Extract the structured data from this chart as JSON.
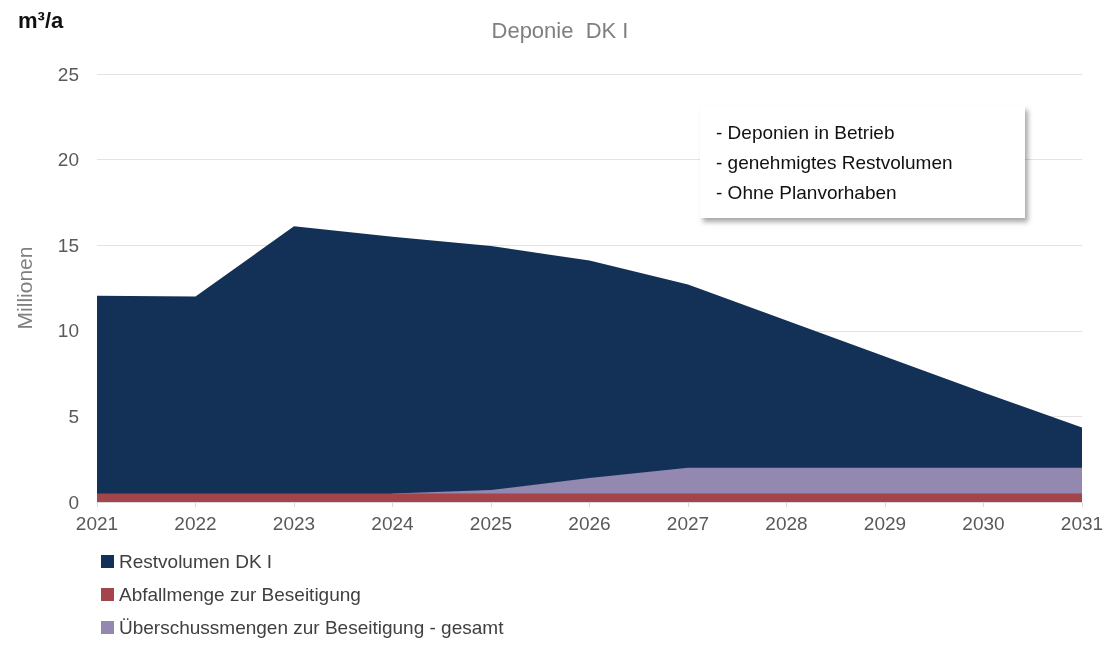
{
  "chart_data": {
    "type": "area",
    "title": "Deponie  DK I",
    "ylabel": "Millionen",
    "annotations": [
      "m³/a",
      "- Deponien in Betrieb",
      "- genehmigtes Restvolumen",
      "- Ohne Planvorhaben"
    ],
    "categories": [
      "2021",
      "2022",
      "2023",
      "2024",
      "2025",
      "2026",
      "2027",
      "2028",
      "2029",
      "2030",
      "2031"
    ],
    "series": [
      {
        "name": "Restvolumen DK I",
        "color": "#133156",
        "values": [
          12.05,
          12.0,
          16.1,
          15.5,
          14.95,
          14.1,
          12.7,
          10.6,
          8.5,
          6.4,
          4.35
        ]
      },
      {
        "name": "Abfallmenge zur Beseitigung",
        "color": "#a4444b",
        "values": [
          0.5,
          0.5,
          0.5,
          0.5,
          0.5,
          0.5,
          0.5,
          0.5,
          0.5,
          0.5,
          0.5
        ]
      },
      {
        "name": "Überschussmengen zur Beseitigung - gesamt",
        "color": "#9389b0",
        "values": [
          null,
          null,
          null,
          0.5,
          0.7,
          1.4,
          2.0,
          2.0,
          2.0,
          2.0,
          2.0
        ]
      }
    ],
    "ylim": [
      0,
      25
    ],
    "yticks": [
      0,
      5,
      10,
      15,
      20,
      25
    ],
    "grid": "y",
    "legend": "bottom left",
    "marker": "none"
  }
}
